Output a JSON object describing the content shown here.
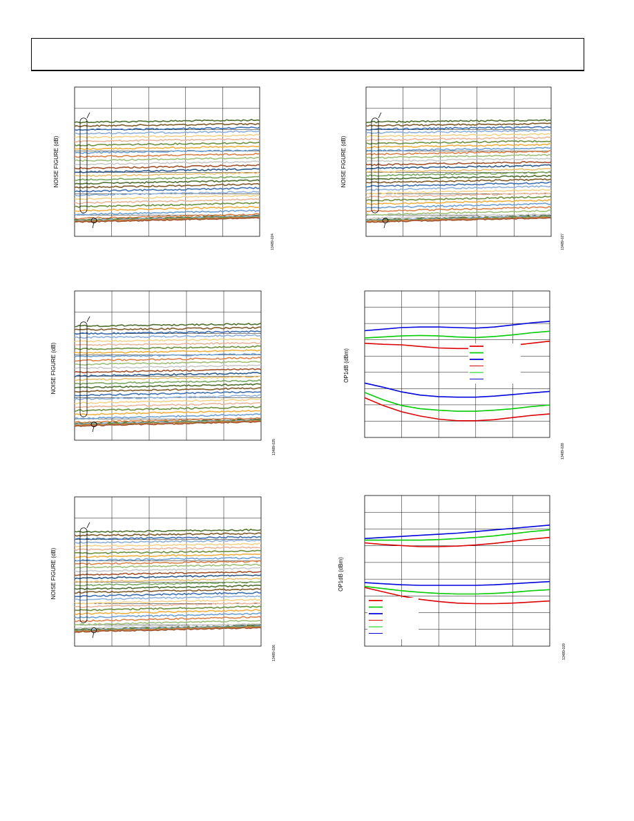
{
  "chart_data": [
    {
      "type": "line",
      "id": "nf-top-left",
      "ylabel": "NOISE FIGURE (dB)",
      "figure_code": "13489-024",
      "series_count": 26,
      "series": []
    },
    {
      "type": "line",
      "id": "nf-top-right",
      "ylabel": "NOISE FIGURE (dB)",
      "figure_code": "13489-027",
      "series_count": 28,
      "series": []
    },
    {
      "type": "line",
      "id": "nf-mid-left",
      "ylabel": "NOISE FIGURE (dB)",
      "figure_code": "13489-025",
      "series_count": 26,
      "series": []
    },
    {
      "type": "line",
      "id": "op1db-mid-right",
      "ylabel": "OP1dB (dBm)",
      "figure_code": "13489-028",
      "x": [
        0,
        0.1,
        0.2,
        0.3,
        0.4,
        0.5,
        0.6,
        0.7,
        0.8,
        0.9,
        1.0
      ],
      "series": [
        {
          "color": "#0000dd",
          "values": [
            8.2,
            8.35,
            8.5,
            8.55,
            8.55,
            8.5,
            8.45,
            8.55,
            8.75,
            8.95,
            9.1
          ]
        },
        {
          "color": "#00cc00",
          "values": [
            7.5,
            7.6,
            7.7,
            7.75,
            7.7,
            7.6,
            7.55,
            7.65,
            7.8,
            8.0,
            8.15
          ]
        },
        {
          "color": "#dd0000",
          "values": [
            7.0,
            6.9,
            6.85,
            6.7,
            6.55,
            6.5,
            6.5,
            6.6,
            6.8,
            7.0,
            7.2
          ]
        },
        {
          "color": "#0000dd",
          "values": [
            3.2,
            2.8,
            2.35,
            2.05,
            1.9,
            1.85,
            1.85,
            1.95,
            2.1,
            2.25,
            2.4
          ]
        },
        {
          "color": "#00cc00",
          "values": [
            2.3,
            1.6,
            1.05,
            0.75,
            0.6,
            0.5,
            0.5,
            0.6,
            0.75,
            0.95,
            1.1
          ]
        },
        {
          "color": "#dd0000",
          "values": [
            1.8,
            1.05,
            0.45,
            0.05,
            -0.25,
            -0.4,
            -0.4,
            -0.3,
            -0.1,
            0.1,
            0.25
          ]
        }
      ],
      "legend_colors": [
        "#dd0000",
        "#00cc00",
        "#0000dd",
        "#dd0000",
        "#00cc00",
        "#0000dd"
      ],
      "legend_placement": "center-right"
    },
    {
      "type": "line",
      "id": "nf-bottom-left",
      "ylabel": "NOISE FIGURE (dB)",
      "figure_code": "13489-026",
      "series_count": 28,
      "series": []
    },
    {
      "type": "line",
      "id": "op1db-bottom-right",
      "ylabel": "OP1dB (dBm)",
      "figure_code": "13489-029",
      "x": [
        0,
        0.1,
        0.2,
        0.3,
        0.4,
        0.5,
        0.6,
        0.7,
        0.8,
        0.9,
        1.0
      ],
      "series": [
        {
          "color": "#0000dd",
          "values": [
            8.0,
            8.1,
            8.2,
            8.3,
            8.4,
            8.5,
            8.65,
            8.8,
            8.95,
            9.1,
            9.25
          ]
        },
        {
          "color": "#00cc00",
          "values": [
            7.85,
            7.85,
            7.85,
            7.85,
            7.9,
            8.0,
            8.1,
            8.25,
            8.45,
            8.65,
            8.8
          ]
        },
        {
          "color": "#dd0000",
          "values": [
            7.6,
            7.45,
            7.35,
            7.25,
            7.25,
            7.3,
            7.4,
            7.55,
            7.75,
            7.95,
            8.1
          ]
        },
        {
          "color": "#0000dd",
          "values": [
            3.9,
            3.8,
            3.7,
            3.65,
            3.65,
            3.65,
            3.65,
            3.7,
            3.8,
            3.9,
            4.0
          ]
        },
        {
          "color": "#00cc00",
          "values": [
            3.55,
            3.35,
            3.15,
            3.0,
            2.9,
            2.85,
            2.85,
            2.9,
            3.0,
            3.15,
            3.25
          ]
        },
        {
          "color": "#dd0000",
          "values": [
            3.45,
            3.05,
            2.65,
            2.35,
            2.15,
            2.0,
            1.95,
            1.95,
            2.0,
            2.1,
            2.2
          ]
        }
      ],
      "legend_colors": [
        "#dd0000",
        "#00cc00",
        "#0000dd",
        "#dd0000",
        "#00cc00",
        "#0000dd"
      ],
      "legend_placement": "bottom-left"
    }
  ],
  "noise_palette": [
    "#4f6f2f",
    "#7d5a2a",
    "#3f6fae",
    "#8fb0d8",
    "#f2d38c",
    "#e9b69a",
    "#6d8f3e",
    "#f0b040",
    "#6fa0d0",
    "#d9824a",
    "#9fbf7a",
    "#c9c9c9",
    "#a0522d",
    "#2e5a8a",
    "#e8c070",
    "#7aa860"
  ]
}
